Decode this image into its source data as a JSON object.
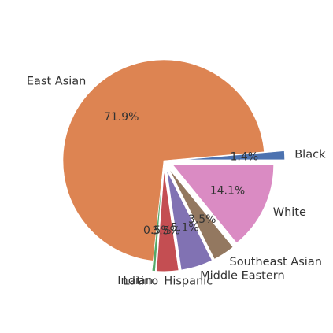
{
  "chart_data": {
    "type": "pie",
    "start_angle_deg": 0,
    "direction": "counterclockwise",
    "legend": "none",
    "slices": [
      {
        "label": "Black",
        "pct_label": "1.4%",
        "value": 1.4,
        "color": "#4c72b0",
        "explode": 0.2
      },
      {
        "label": "East Asian",
        "pct_label": "71.9%",
        "value": 71.9,
        "color": "#dd8452",
        "explode": 0.0
      },
      {
        "label": "Indian",
        "pct_label": "0.5%",
        "value": 0.5,
        "color": "#55a868",
        "explode": 0.1
      },
      {
        "label": "Latino_Hispanic",
        "pct_label": "3.5%",
        "value": 3.5,
        "color": "#c44e52",
        "explode": 0.1
      },
      {
        "label": "Middle Eastern",
        "pct_label": "5.1%",
        "value": 5.1,
        "color": "#8172b3",
        "explode": 0.1
      },
      {
        "label": "Southeast Asian",
        "pct_label": "3.5%",
        "value": 3.5,
        "color": "#937860",
        "explode": 0.1
      },
      {
        "label": "White",
        "pct_label": "14.1%",
        "value": 14.1,
        "color": "#da8bc3",
        "explode": 0.1
      }
    ]
  }
}
